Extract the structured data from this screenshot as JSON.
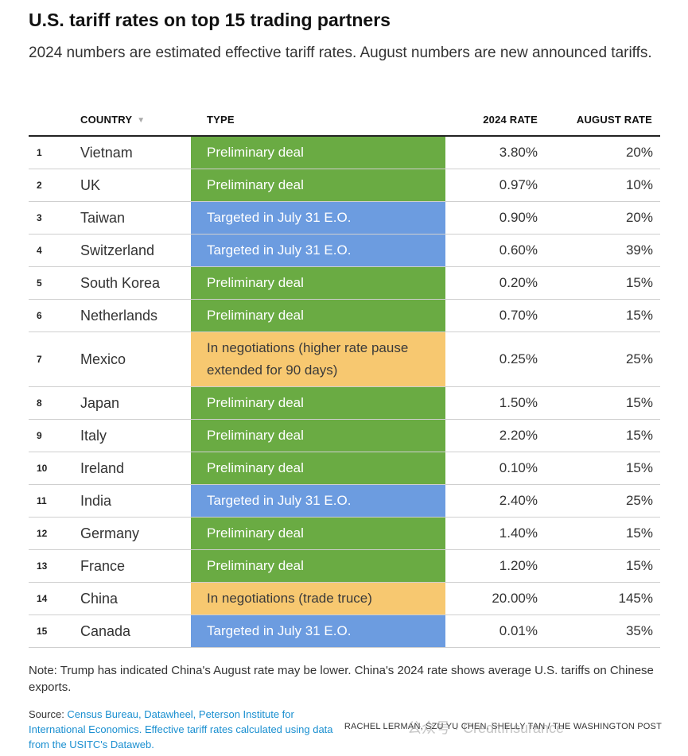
{
  "header": {
    "title": "U.S. tariff rates on top 15 trading partners",
    "subtitle": "2024 numbers are estimated effective tariff rates. August numbers are new announced tariffs."
  },
  "colors": {
    "Preliminary deal": "#6aab43",
    "Targeted in July 31 E.O.": "#6c9ce0",
    "negotiations": "#f7c870"
  },
  "chart_data": {
    "type": "table",
    "columns": [
      "COUNTRY",
      "TYPE",
      "2024 RATE",
      "AUGUST RATE"
    ],
    "sort_icon": "sort-down-triangle-icon",
    "rows": [
      {
        "rank": "1",
        "country": "Vietnam",
        "type": "Preliminary deal",
        "category": "Preliminary deal",
        "rate_2024": "3.80%",
        "rate_august": "20%"
      },
      {
        "rank": "2",
        "country": "UK",
        "type": "Preliminary deal",
        "category": "Preliminary deal",
        "rate_2024": "0.97%",
        "rate_august": "10%"
      },
      {
        "rank": "3",
        "country": "Taiwan",
        "type": "Targeted in July 31 E.O.",
        "category": "Targeted in July 31 E.O.",
        "rate_2024": "0.90%",
        "rate_august": "20%"
      },
      {
        "rank": "4",
        "country": "Switzerland",
        "type": "Targeted in July 31 E.O.",
        "category": "Targeted in July 31 E.O.",
        "rate_2024": "0.60%",
        "rate_august": "39%"
      },
      {
        "rank": "5",
        "country": "South Korea",
        "type": "Preliminary deal",
        "category": "Preliminary deal",
        "rate_2024": "0.20%",
        "rate_august": "15%"
      },
      {
        "rank": "6",
        "country": "Netherlands",
        "type": "Preliminary deal",
        "category": "Preliminary deal",
        "rate_2024": "0.70%",
        "rate_august": "15%"
      },
      {
        "rank": "7",
        "country": "Mexico",
        "type": "In negotiations (higher rate pause extended for 90 days)",
        "category": "negotiations",
        "rate_2024": "0.25%",
        "rate_august": "25%"
      },
      {
        "rank": "8",
        "country": "Japan",
        "type": "Preliminary deal",
        "category": "Preliminary deal",
        "rate_2024": "1.50%",
        "rate_august": "15%"
      },
      {
        "rank": "9",
        "country": "Italy",
        "type": "Preliminary deal",
        "category": "Preliminary deal",
        "rate_2024": "2.20%",
        "rate_august": "15%"
      },
      {
        "rank": "10",
        "country": "Ireland",
        "type": "Preliminary deal",
        "category": "Preliminary deal",
        "rate_2024": "0.10%",
        "rate_august": "15%"
      },
      {
        "rank": "11",
        "country": "India",
        "type": "Targeted in July 31 E.O.",
        "category": "Targeted in July 31 E.O.",
        "rate_2024": "2.40%",
        "rate_august": "25%"
      },
      {
        "rank": "12",
        "country": "Germany",
        "type": "Preliminary deal",
        "category": "Preliminary deal",
        "rate_2024": "1.40%",
        "rate_august": "15%"
      },
      {
        "rank": "13",
        "country": "France",
        "type": "Preliminary deal",
        "category": "Preliminary deal",
        "rate_2024": "1.20%",
        "rate_august": "15%"
      },
      {
        "rank": "14",
        "country": "China",
        "type": "In negotiations (trade truce)",
        "category": "negotiations",
        "rate_2024": "20.00%",
        "rate_august": "145%"
      },
      {
        "rank": "15",
        "country": "Canada",
        "type": "Targeted in July 31 E.O.",
        "category": "Targeted in July 31 E.O.",
        "rate_2024": "0.01%",
        "rate_august": "35%"
      }
    ]
  },
  "footer": {
    "note": "Note: Trump has indicated China's August rate may be lower. China's 2024 rate shows average U.S. tariffs on Chinese exports.",
    "source_label": "Source: ",
    "source_text": "Census Bureau, Datawheel, Peterson Institute for International Economics. Effective tariff rates calculated using data from the USITC's Dataweb.",
    "credit": "RACHEL LERMAN, SZU YU CHEN, SHELLY TAN / THE WASHINGTON POST",
    "watermark": "公众号 · CreditInsurance"
  }
}
